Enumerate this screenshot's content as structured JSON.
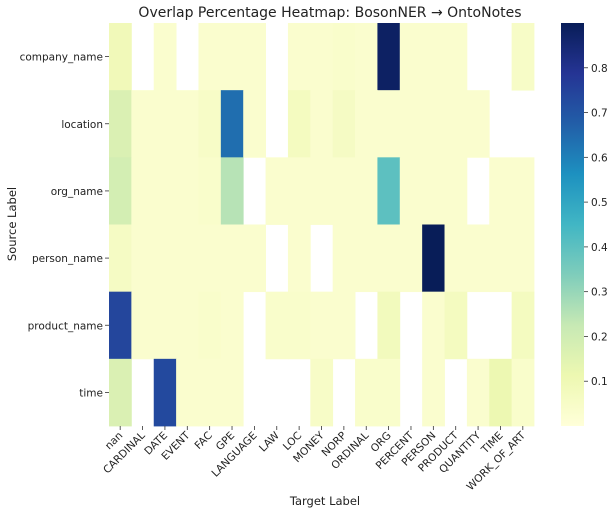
{
  "chart_data": {
    "type": "heatmap",
    "title": "Overlap Percentage Heatmap: BosonNER → OntoNotes",
    "xlabel": "Target Label",
    "ylabel": "Source Label",
    "x_categories": [
      "nan",
      "CARDINAL",
      "DATE",
      "EVENT",
      "FAC",
      "GPE",
      "LANGUAGE",
      "LAW",
      "LOC",
      "MONEY",
      "NORP",
      "ORDINAL",
      "ORG",
      "PERCENT",
      "PERSON",
      "PRODUCT",
      "QUANTITY",
      "TIME",
      "WORK_OF_ART"
    ],
    "y_categories": [
      "company_name",
      "location",
      "org_name",
      "person_name",
      "product_name",
      "time"
    ],
    "values": [
      [
        0.09,
        null,
        0.03,
        null,
        0.03,
        0.03,
        0.03,
        null,
        0.03,
        0.03,
        0.04,
        0.03,
        0.88,
        0.03,
        0.03,
        0.03,
        null,
        null,
        0.05
      ],
      [
        0.17,
        0.03,
        0.03,
        0.03,
        0.05,
        0.64,
        0.03,
        null,
        0.07,
        0.03,
        0.06,
        0.03,
        0.03,
        0.03,
        0.03,
        0.03,
        0.03,
        null,
        null
      ],
      [
        0.19,
        0.03,
        0.03,
        0.03,
        0.04,
        0.25,
        null,
        0.03,
        0.03,
        0.03,
        0.03,
        0.03,
        0.4,
        0.03,
        0.03,
        0.03,
        null,
        0.03,
        0.03
      ],
      [
        0.06,
        0.03,
        0.03,
        0.03,
        0.03,
        0.03,
        0.03,
        null,
        0.03,
        null,
        0.03,
        0.03,
        0.03,
        0.03,
        0.91,
        0.03,
        0.03,
        0.03,
        0.03
      ],
      [
        0.74,
        0.03,
        0.03,
        0.03,
        0.04,
        0.03,
        null,
        0.04,
        0.04,
        0.03,
        0.03,
        null,
        0.08,
        null,
        0.03,
        0.07,
        null,
        null,
        0.07
      ],
      [
        0.17,
        null,
        0.73,
        0.03,
        0.03,
        0.03,
        null,
        null,
        null,
        0.05,
        null,
        0.04,
        0.04,
        null,
        0.03,
        null,
        0.03,
        0.11,
        0.04
      ]
    ],
    "colorbar": {
      "min": 0,
      "max": 0.9,
      "ticks": [
        0.1,
        0.2,
        0.3,
        0.4,
        0.5,
        0.6,
        0.7,
        0.8
      ],
      "colormap": "YlGnBu"
    },
    "grid": false
  }
}
